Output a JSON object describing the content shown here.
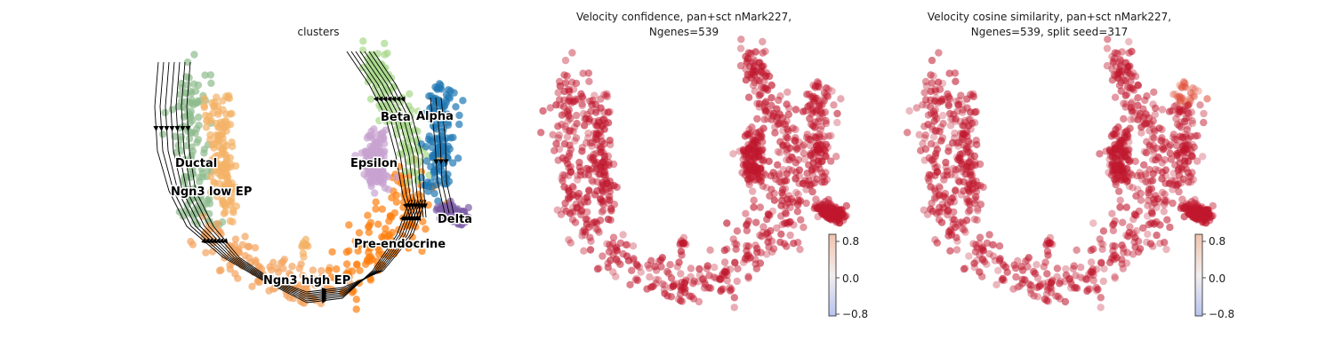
{
  "chart_data": [
    {
      "type": "scatter",
      "subtype": "embedding-with-velocity-streamlines",
      "title": "clusters",
      "axes_visible": false,
      "clusters": [
        {
          "name": "Ductal",
          "color": "#8fbc8f"
        },
        {
          "name": "Ngn3 low EP",
          "color": "#f4b266"
        },
        {
          "name": "Ngn3 high EP",
          "color": "#f4a460"
        },
        {
          "name": "Pre-endocrine",
          "color": "#ff7f0e"
        },
        {
          "name": "Beta",
          "color": "#a8d88a"
        },
        {
          "name": "Alpha",
          "color": "#1f77b4"
        },
        {
          "name": "Epsilon",
          "color": "#c8a2d0"
        },
        {
          "name": "Delta",
          "color": "#7e5fa8"
        }
      ],
      "labels": [
        "Ductal",
        "Ngn3 low EP",
        "Ngn3 high EP",
        "Pre-endocrine",
        "Beta",
        "Alpha",
        "Epsilon",
        "Delta"
      ],
      "streamline_color": "#000000"
    },
    {
      "type": "scatter",
      "subtype": "embedding-colored-by-value",
      "title": "Velocity confidence, pan+sct nMark227,\nNgenes=539",
      "title_lines": [
        "Velocity confidence, pan+sct nMark227,",
        "Ngenes=539"
      ],
      "axes_visible": false,
      "point_color": "#c0182e",
      "colorbar": {
        "cmap": "coolwarm",
        "ticks": [
          "0.8",
          "0.0",
          "−0.8"
        ],
        "range": [
          -0.9,
          0.9
        ]
      }
    },
    {
      "type": "scatter",
      "subtype": "embedding-colored-by-value",
      "title": "Velocity cosine similarity, pan+sct nMark227,\nNgenes=539, split seed=317",
      "title_lines": [
        "Velocity cosine similarity, pan+sct nMark227,",
        "Ngenes=539, split seed=317"
      ],
      "axes_visible": false,
      "point_color": "#c0182e",
      "highlight_color": "#e0553f",
      "colorbar": {
        "cmap": "coolwarm",
        "ticks": [
          "0.8",
          "0.0",
          "−0.8"
        ],
        "range": [
          -0.9,
          0.9
        ]
      }
    }
  ]
}
